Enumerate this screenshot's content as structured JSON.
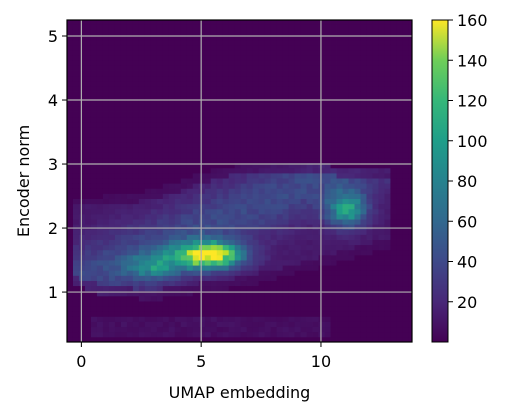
{
  "chart_data": {
    "type": "heatmap",
    "xlabel": "UMAP embedding",
    "ylabel": "Encoder norm",
    "xlim": [
      -0.6,
      13.8
    ],
    "ylim": [
      0.22,
      5.25
    ],
    "x_ticks": [
      0,
      5,
      10
    ],
    "x_tick_labels": [
      "0",
      "5",
      "10"
    ],
    "y_ticks": [
      1,
      2,
      3,
      4,
      5
    ],
    "y_tick_labels": [
      "1",
      "2",
      "3",
      "4",
      "5"
    ],
    "grid": true,
    "colormap": "viridis",
    "colorbar": {
      "min": 0,
      "max": 160,
      "ticks": [
        20,
        40,
        60,
        80,
        100,
        120,
        140,
        160
      ],
      "tick_labels": [
        "20",
        "40",
        "60",
        "80",
        "100",
        "120",
        "140",
        "160"
      ]
    },
    "bin_width_x": 0.25,
    "bin_width_y": 0.08,
    "main_band": {
      "x_range": [
        -0.3,
        12.8
      ],
      "y_lower_at_x": [
        [
          -0.3,
          1.1
        ],
        [
          1,
          0.95
        ],
        [
          3,
          0.88
        ],
        [
          5,
          1.0
        ],
        [
          7,
          1.1
        ],
        [
          9,
          1.3
        ],
        [
          11,
          1.5
        ],
        [
          12.8,
          1.7
        ]
      ],
      "y_upper_at_x": [
        [
          -0.3,
          2.5
        ],
        [
          1,
          2.5
        ],
        [
          3,
          2.6
        ],
        [
          5,
          2.85
        ],
        [
          7,
          3.05
        ],
        [
          9,
          3.05
        ],
        [
          11,
          2.95
        ],
        [
          12.8,
          2.9
        ]
      ]
    },
    "density_peaks": [
      {
        "x": 5.3,
        "y": 1.58,
        "count": 160
      },
      {
        "x": 11.1,
        "y": 2.3,
        "count": 90
      }
    ],
    "low_strip": {
      "x_range": [
        0.4,
        10.3
      ],
      "y_range": [
        0.28,
        0.62
      ]
    }
  }
}
